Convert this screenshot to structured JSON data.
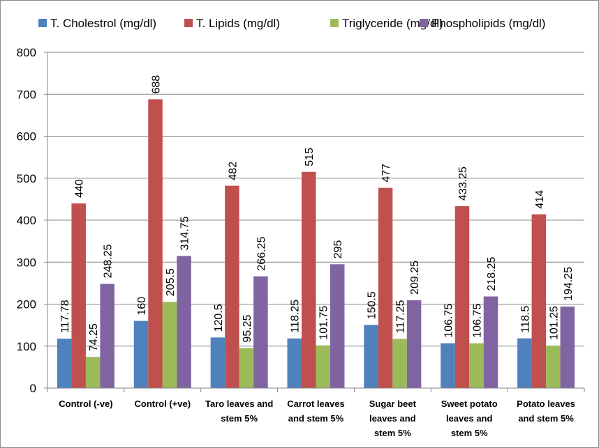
{
  "chart_data": {
    "type": "bar",
    "title": "",
    "xlabel": "",
    "ylabel": "",
    "ylim": [
      0,
      800
    ],
    "yticks": [
      0,
      100,
      200,
      300,
      400,
      500,
      600,
      700,
      800
    ],
    "grid": true,
    "legend_position": "top",
    "categories": [
      [
        "Control (-ve)"
      ],
      [
        "Control (+ve)"
      ],
      [
        "Taro leaves and",
        "stem 5%"
      ],
      [
        "Carrot leaves",
        "and stem 5%"
      ],
      [
        "Sugar beet",
        "leaves and",
        "stem 5%"
      ],
      [
        "Sweet potato",
        "leaves and",
        "stem 5%"
      ],
      [
        "Potato leaves",
        "and stem 5%"
      ]
    ],
    "series": [
      {
        "name": "T. Cholestrol (mg/dl)",
        "color": "#4f81bd",
        "values": [
          117.78,
          160,
          120.5,
          118.25,
          150.5,
          106.75,
          118.5
        ],
        "labels": [
          "117.78",
          "160",
          "120.5",
          "118.25",
          "150.5",
          "106.75",
          "118.5"
        ]
      },
      {
        "name": "T. Lipids (mg/dl)",
        "color": "#c0504d",
        "values": [
          440,
          688,
          482,
          515,
          477,
          433.25,
          414
        ],
        "labels": [
          "440",
          "688",
          "482",
          "515",
          "477",
          "433.25",
          "414"
        ]
      },
      {
        "name": "Triglyceride (mg/dl)",
        "color": "#9bbb59",
        "values": [
          74.25,
          205.5,
          95.25,
          101.75,
          117.25,
          106.75,
          101.25
        ],
        "labels": [
          "74.25",
          "205.5",
          "95.25",
          "101.75",
          "117.25",
          "106.75",
          "101.25"
        ]
      },
      {
        "name": "Phospholipids (mg/dl)",
        "color": "#8064a2",
        "values": [
          248.25,
          314.75,
          266.25,
          295,
          209.25,
          218.25,
          194.25
        ],
        "labels": [
          "248.25",
          "314.75",
          "266.25",
          "295",
          "209.25",
          "218.25",
          "194.25"
        ]
      }
    ]
  }
}
